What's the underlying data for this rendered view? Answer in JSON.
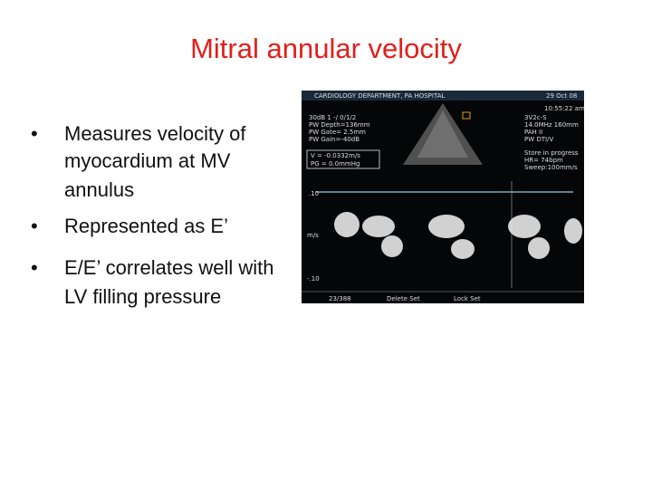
{
  "slide": {
    "title": "Mitral annular velocity",
    "bullets": [
      {
        "marker": "•",
        "lines": [
          "Measures velocity of",
          "myocardium at MV",
          "annulus"
        ]
      },
      {
        "marker": "•",
        "lines": [
          "Represented as E’"
        ]
      },
      {
        "marker": "•",
        "lines": [
          "E/E’ correlates well with",
          "LV filling pressure"
        ]
      }
    ],
    "image": {
      "header": "CARDIOLOGY DEPARTMENT, PA HOSPITAL",
      "date": "29 Oct 08",
      "time": "10:55:22 am",
      "left_settings": [
        "30dB  1 -/ 0/1/2",
        "PW Depth=136mm",
        "PW Gate= 2.5mm",
        "PW Gain=-40dB"
      ],
      "measure": [
        "V = -0.0332m/s",
        "PG = 0.0mmHg"
      ],
      "right_settings": [
        "3V2c-S",
        "14.0MHz    160mm",
        "PAH II",
        "PW DTI/V"
      ],
      "status": [
        "Store in progress",
        "HR= 74bpm",
        "Sweep:100mm/s"
      ],
      "scale_top": ".10",
      "scale_unit": "m/s",
      "scale_bottom": "-.10",
      "footer_left": "23/388",
      "footer_mid": "Delete Set",
      "footer_right": "Lock Set"
    }
  }
}
